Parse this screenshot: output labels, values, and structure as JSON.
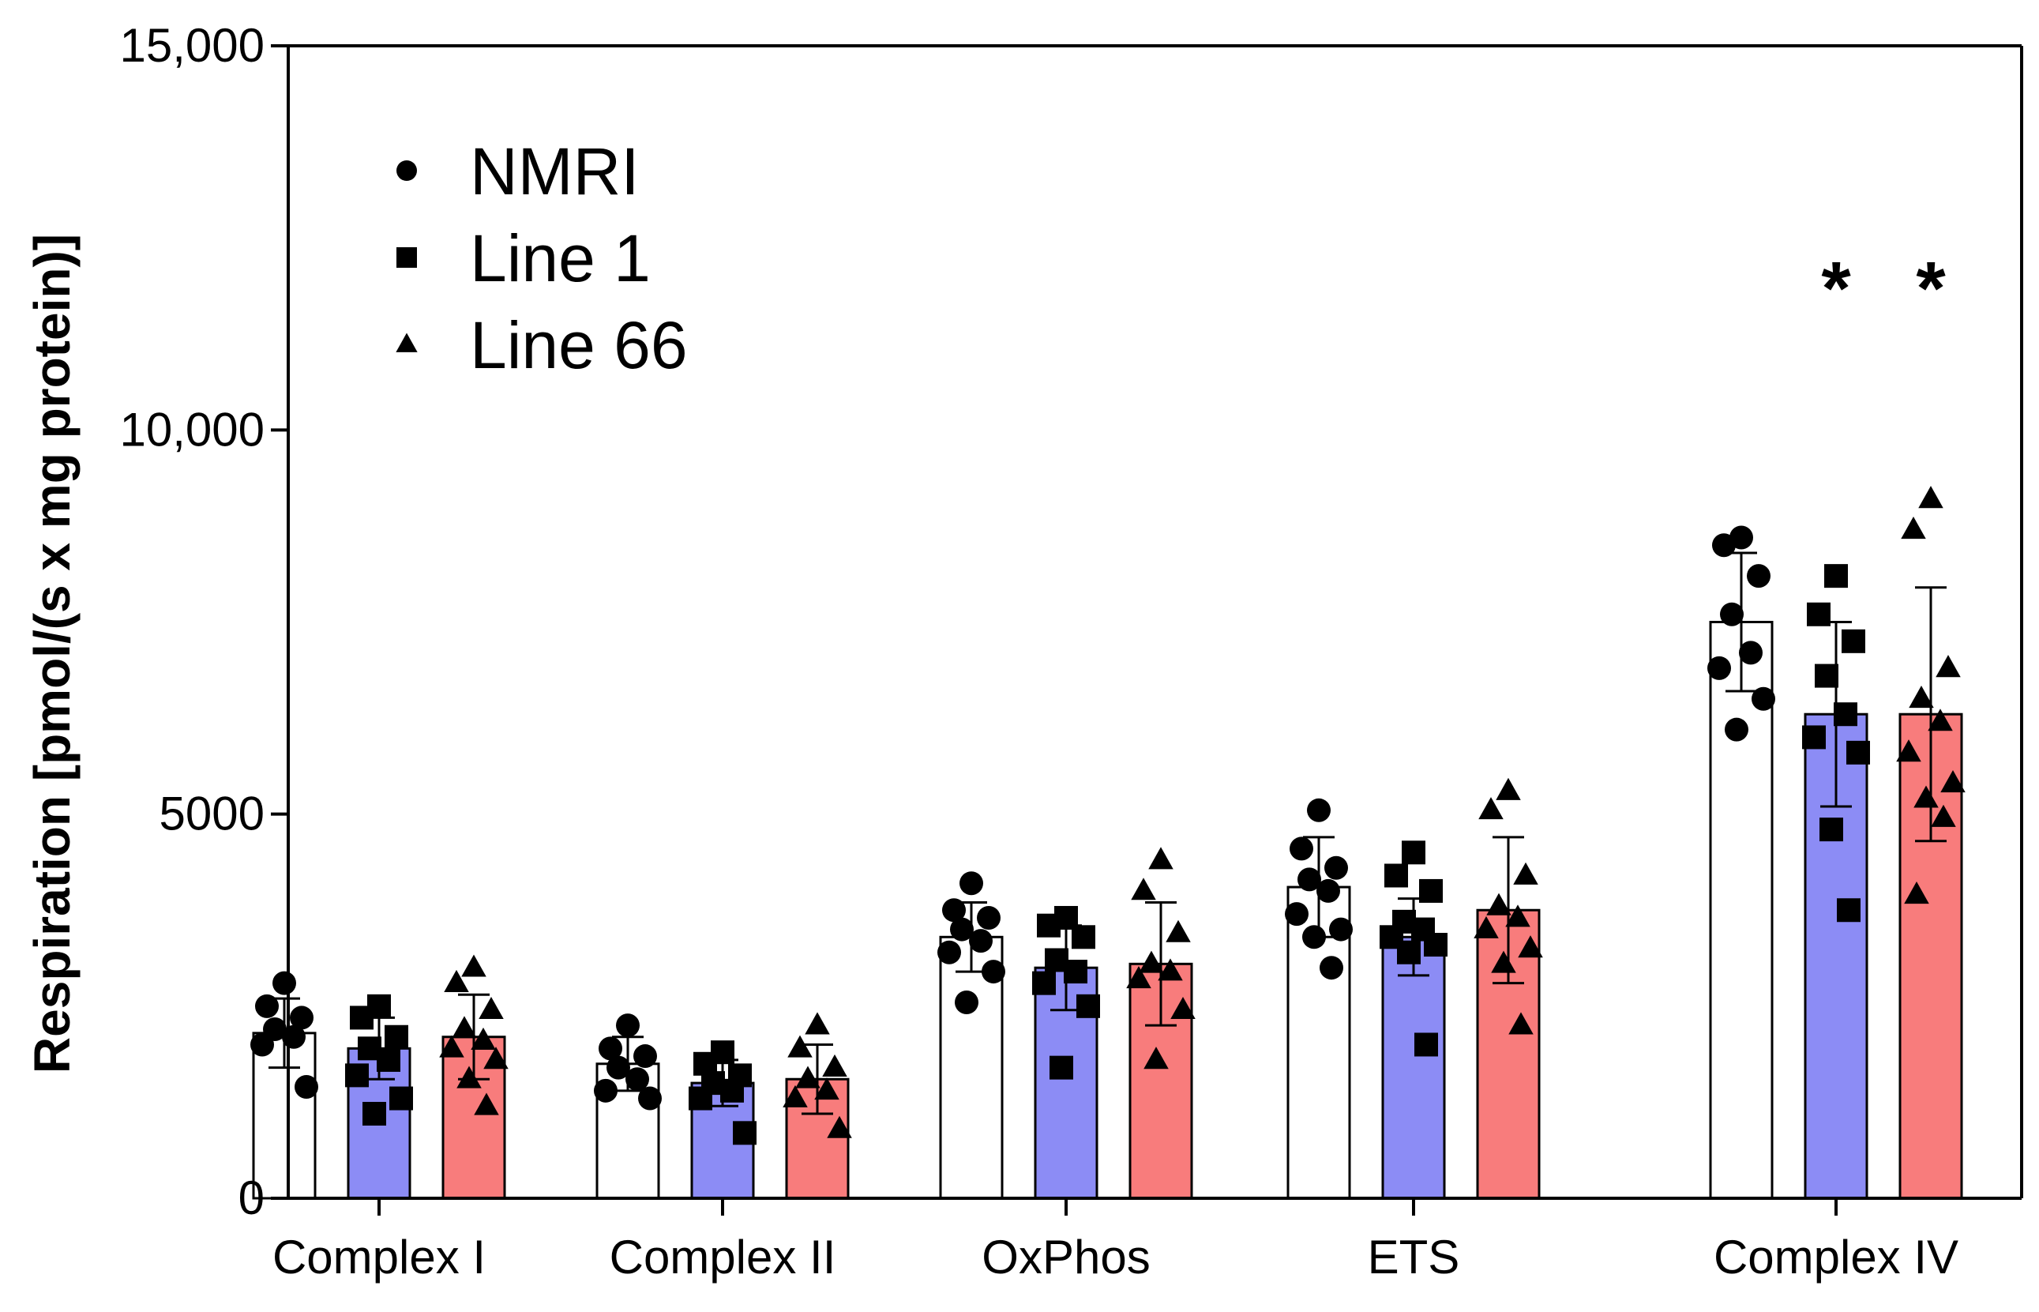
{
  "chart_data": {
    "type": "bar",
    "title": "",
    "xlabel": "",
    "ylabel": "Respiration [pmol/(s x mg protein)]",
    "ylim": [
      0,
      15000
    ],
    "yticks": [
      0,
      5000,
      10000,
      15000
    ],
    "ytick_labels": [
      "0",
      "5000",
      "10,000",
      "15,000"
    ],
    "categories": [
      "Complex I",
      "Complex II",
      "OxPhos",
      "ETS",
      "Complex IV"
    ],
    "legend_position": "top-left",
    "series": [
      {
        "name": "NMRI",
        "marker": "circle",
        "color": "#ffffff",
        "values": [
          2150,
          1750,
          3400,
          4050,
          7500
        ],
        "errors": [
          450,
          350,
          450,
          650,
          900
        ],
        "points": [
          [
            2800,
            2500,
            2350,
            2200,
            2100,
            2000,
            1450
          ],
          [
            2250,
            1950,
            1850,
            1700,
            1550,
            1400,
            1300
          ],
          [
            4100,
            3750,
            3650,
            3500,
            3350,
            3200,
            2950,
            2550
          ],
          [
            5050,
            4550,
            4300,
            4150,
            4000,
            3700,
            3500,
            3400,
            3000
          ],
          [
            8600,
            8500,
            8100,
            7600,
            7100,
            6900,
            6500,
            6100
          ]
        ]
      },
      {
        "name": "Line 1",
        "marker": "square",
        "color": "#8c8cf5",
        "values": [
          1950,
          1500,
          3000,
          3400,
          6300
        ],
        "errors": [
          400,
          300,
          550,
          500,
          1200
        ],
        "points": [
          [
            2500,
            2350,
            2100,
            1950,
            1800,
            1600,
            1300,
            1100
          ],
          [
            1900,
            1750,
            1600,
            1500,
            1400,
            1300,
            850
          ],
          [
            3650,
            3550,
            3400,
            3100,
            2950,
            2800,
            2500,
            1700
          ],
          [
            4500,
            4200,
            4000,
            3600,
            3500,
            3400,
            3300,
            3200,
            2000
          ],
          [
            8100,
            7600,
            7250,
            6800,
            6300,
            6000,
            5800,
            4800,
            3750
          ]
        ]
      },
      {
        "name": "Line 66",
        "marker": "triangle",
        "color": "#f87c7c",
        "values": [
          2100,
          1550,
          3050,
          3750,
          6300
        ],
        "errors": [
          550,
          450,
          800,
          950,
          1650
        ],
        "points": [
          [
            3000,
            2800,
            2450,
            2200,
            2050,
            1950,
            1800,
            1550,
            1200
          ],
          [
            2250,
            1950,
            1700,
            1550,
            1400,
            1300,
            900
          ],
          [
            4400,
            4000,
            3450,
            3050,
            2950,
            2850,
            2450,
            1800
          ],
          [
            5300,
            5050,
            4200,
            3800,
            3650,
            3500,
            3250,
            3050,
            2250
          ],
          [
            9100,
            8700,
            6900,
            6500,
            6200,
            5800,
            5400,
            5200,
            4950,
            3950
          ]
        ]
      }
    ],
    "annotations": [
      {
        "text": "*",
        "category": "Complex IV",
        "series": "Line 1"
      },
      {
        "text": "*",
        "category": "Complex IV",
        "series": "Line 66"
      }
    ]
  }
}
